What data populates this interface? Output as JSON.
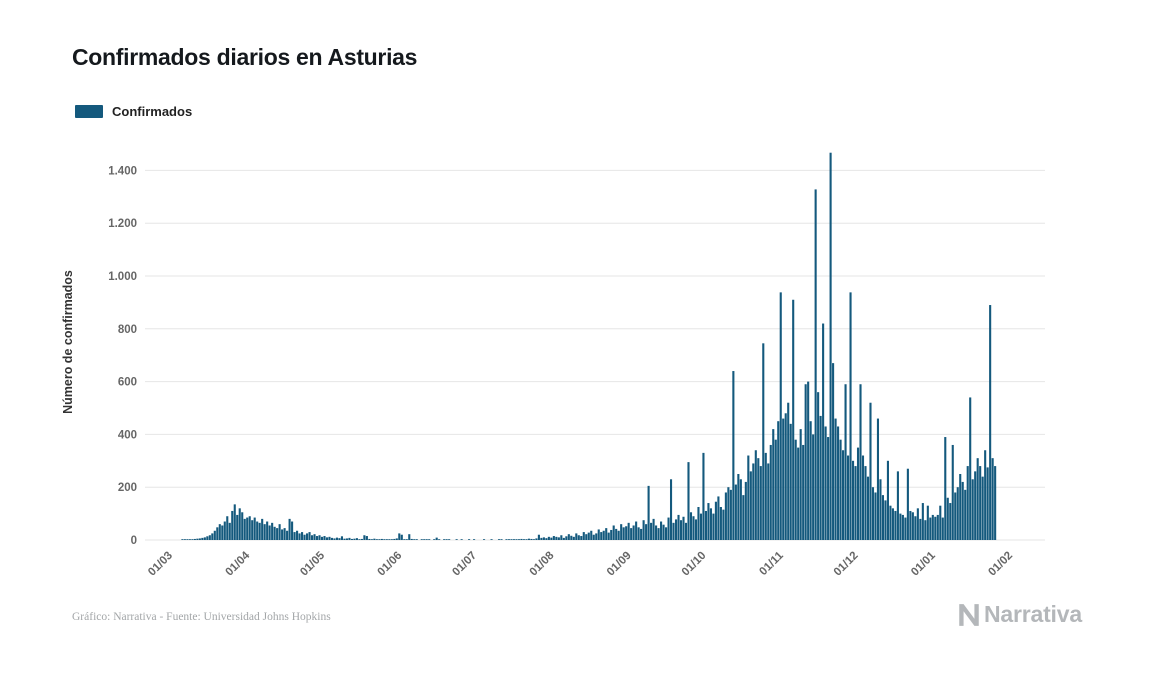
{
  "page": {
    "title": "Confirmados diarios en Asturias",
    "credit": "Gráfico: Narrativa - Fuente: Universidad Johns Hopkins",
    "brand": "Narrativa"
  },
  "legend": {
    "label": "Confirmados"
  },
  "chart_data": {
    "type": "bar",
    "title": "Confirmados diarios en Asturias",
    "xlabel": "",
    "ylabel": "Número de confirmados",
    "ylim": [
      0,
      1500
    ],
    "xlim_days": [
      -12,
      349
    ],
    "grid": true,
    "legend_position": "top-left",
    "bar_color": "#14597d",
    "grid_color": "#e6e6e6",
    "y_ticks": [
      0,
      200,
      400,
      600,
      800,
      1000,
      1200,
      1400
    ],
    "y_tick_labels": [
      "0",
      "200",
      "400",
      "600",
      "800",
      "1.000",
      "1.200",
      "1.400"
    ],
    "x_ticks": [
      {
        "label": "01/03",
        "day": 0
      },
      {
        "label": "01/04",
        "day": 31
      },
      {
        "label": "01/05",
        "day": 61
      },
      {
        "label": "01/06",
        "day": 92
      },
      {
        "label": "01/07",
        "day": 122
      },
      {
        "label": "01/08",
        "day": 153
      },
      {
        "label": "01/09",
        "day": 184
      },
      {
        "label": "01/10",
        "day": 214
      },
      {
        "label": "01/11",
        "day": 245
      },
      {
        "label": "01/12",
        "day": 275
      },
      {
        "label": "01/01",
        "day": 306
      },
      {
        "label": "01/02",
        "day": 337
      }
    ],
    "series": [
      {
        "name": "Confirmados",
        "values": [
          0,
          0,
          0,
          1,
          1,
          2,
          2,
          3,
          4,
          5,
          6,
          8,
          10,
          14,
          18,
          25,
          35,
          48,
          60,
          55,
          70,
          90,
          65,
          110,
          135,
          95,
          120,
          105,
          80,
          85,
          90,
          75,
          85,
          70,
          65,
          80,
          60,
          70,
          55,
          65,
          50,
          45,
          60,
          40,
          45,
          35,
          80,
          70,
          30,
          35,
          25,
          30,
          20,
          25,
          30,
          18,
          22,
          15,
          18,
          12,
          15,
          10,
          12,
          8,
          6,
          9,
          7,
          14,
          5,
          6,
          8,
          4,
          5,
          7,
          3,
          4,
          18,
          15,
          4,
          3,
          5,
          2,
          3,
          4,
          2,
          3,
          1,
          2,
          4,
          6,
          25,
          20,
          2,
          1,
          22,
          4,
          2,
          1,
          0,
          1,
          2,
          3,
          1,
          0,
          1,
          9,
          1,
          0,
          1,
          2,
          1,
          0,
          0,
          1,
          0,
          1,
          0,
          0,
          1,
          0,
          1,
          0,
          0,
          0,
          1,
          0,
          0,
          1,
          0,
          0,
          1,
          1,
          0,
          1,
          1,
          2,
          1,
          3,
          2,
          4,
          3,
          2,
          5,
          4,
          3,
          6,
          20,
          8,
          10,
          7,
          12,
          9,
          15,
          12,
          10,
          18,
          8,
          14,
          22,
          16,
          12,
          25,
          18,
          15,
          30,
          22,
          28,
          35,
          20,
          25,
          40,
          30,
          35,
          45,
          28,
          38,
          55,
          42,
          35,
          60,
          48,
          52,
          65,
          45,
          55,
          70,
          48,
          42,
          75,
          60,
          205,
          65,
          80,
          55,
          45,
          70,
          58,
          48,
          85,
          230,
          65,
          78,
          95,
          75,
          88,
          65,
          295,
          105,
          90,
          78,
          125,
          100,
          330,
          110,
          140,
          120,
          100,
          145,
          165,
          125,
          115,
          180,
          200,
          190,
          640,
          210,
          250,
          230,
          170,
          220,
          320,
          260,
          290,
          340,
          310,
          280,
          745,
          330,
          290,
          360,
          420,
          380,
          450,
          938,
          460,
          480,
          520,
          440,
          910,
          380,
          350,
          420,
          360,
          590,
          600,
          450,
          400,
          1328,
          560,
          470,
          820,
          430,
          390,
          1467,
          670,
          460,
          430,
          380,
          340,
          590,
          320,
          938,
          300,
          280,
          350,
          590,
          320,
          280,
          240,
          520,
          200,
          180,
          460,
          230,
          170,
          150,
          300,
          130,
          120,
          110,
          260,
          100,
          95,
          85,
          270,
          110,
          105,
          90,
          120,
          80,
          140,
          75,
          130,
          85,
          95,
          88,
          95,
          130,
          85,
          390,
          160,
          140,
          360,
          180,
          200,
          250,
          220,
          190,
          280,
          540,
          230,
          260,
          310,
          280,
          240,
          340,
          275,
          890,
          310,
          280
        ]
      }
    ]
  }
}
